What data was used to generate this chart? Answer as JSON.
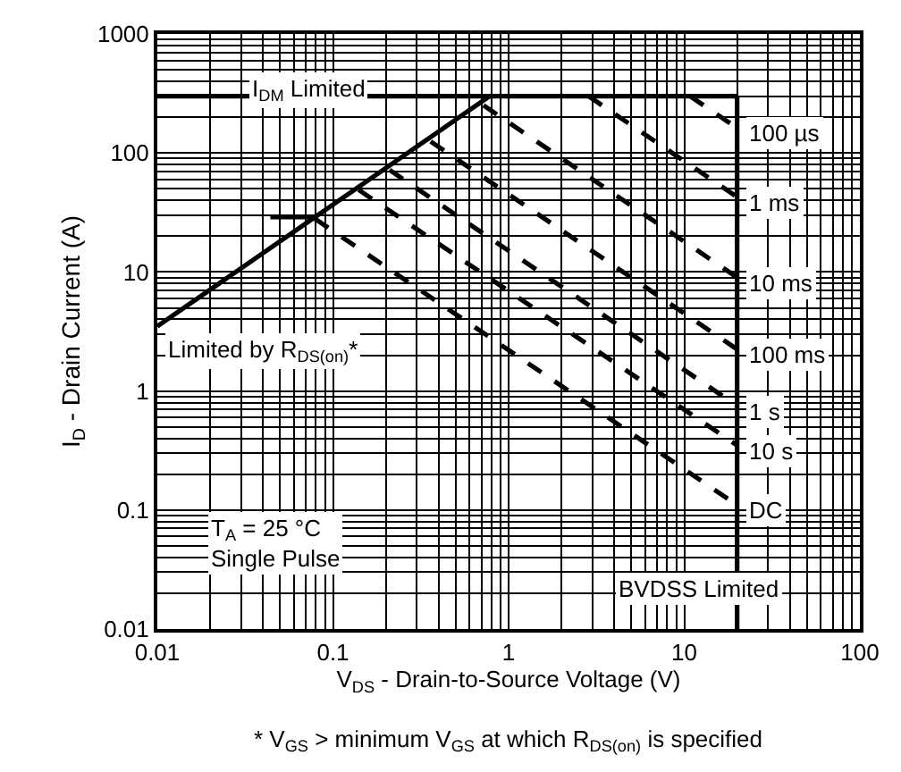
{
  "chart_data": {
    "type": "line",
    "xlabel": "V$_{DS}$ - Drain-to-Source Voltage (V)",
    "ylabel": "I$_{D}$ - Drain Current (A)",
    "log": "xy",
    "xlim": [
      0.01,
      100
    ],
    "ylim": [
      0.01,
      1000
    ],
    "xticks": [
      0.01,
      0.1,
      1,
      10,
      100
    ],
    "yticks": [
      0.01,
      0.1,
      1,
      10,
      100,
      1000
    ],
    "grid": true,
    "legend": false,
    "marker": "none",
    "series": [
      {
        "name": "Limited by R$_{DS(on)}$*",
        "color": "#000000",
        "line_style": "solid",
        "x": [
          0.01,
          0.78
        ],
        "values": [
          3.5,
          300
        ]
      },
      {
        "name": "I$_{DM}$ Limited",
        "color": "#000000",
        "line_style": "solid",
        "x": [
          0.01,
          20
        ],
        "values": [
          300,
          300
        ]
      },
      {
        "name": "BVDSS Limited",
        "color": "#000000",
        "line_style": "solid",
        "x": [
          20,
          20
        ],
        "values": [
          300,
          0.01
        ]
      },
      {
        "color": "#000000",
        "line_style": "solid",
        "x": [
          0.044,
          0.08
        ],
        "values": [
          29,
          29
        ]
      },
      {
        "name": "100 µs",
        "color": "#000000",
        "line_style": "dashed",
        "x": [
          10.8,
          20
        ],
        "values": [
          300,
          162
        ]
      },
      {
        "name": "1 ms",
        "color": "#000000",
        "line_style": "dashed",
        "x": [
          2.85,
          20
        ],
        "values": [
          300,
          42.7
        ]
      },
      {
        "name": "10 ms",
        "color": "#000000",
        "line_style": "dashed",
        "x": [
          0.72,
          20
        ],
        "values": [
          251,
          9.0
        ]
      },
      {
        "name": "100 ms",
        "color": "#000000",
        "line_style": "dashed",
        "x": [
          0.36,
          20
        ],
        "values": [
          125,
          2.24
        ]
      },
      {
        "name": "1 s",
        "color": "#000000",
        "line_style": "dashed",
        "x": [
          0.21,
          20
        ],
        "values": [
          72,
          0.75
        ]
      },
      {
        "name": "10 s",
        "color": "#000000",
        "line_style": "dashed",
        "x": [
          0.14,
          20
        ],
        "values": [
          49,
          0.35
        ]
      },
      {
        "name": "DC",
        "color": "#000000",
        "line_style": "dashed",
        "x": [
          0.079,
          20
        ],
        "values": [
          28,
          0.11
        ]
      }
    ],
    "annotations": [
      "T$_{A}$ = 25 °C\nSingle Pulse",
      "* V$_{GS}$ > minimum V$_{GS}$ at which R$_{DS(on)}$ is specified"
    ]
  }
}
